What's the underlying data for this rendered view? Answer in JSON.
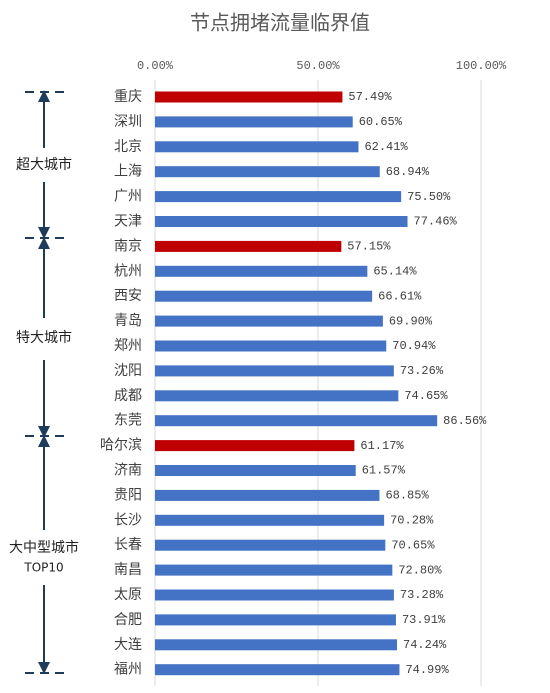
{
  "chart_data": {
    "type": "hbar",
    "title": "节点拥堵流量临界值",
    "categories": [
      "重庆",
      "深圳",
      "北京",
      "上海",
      "广州",
      "天津",
      "南京",
      "杭州",
      "西安",
      "青岛",
      "郑州",
      "沈阳",
      "成都",
      "东莞",
      "哈尔滨",
      "济南",
      "贵阳",
      "长沙",
      "长春",
      "南昌",
      "太原",
      "合肥",
      "大连",
      "福州"
    ],
    "values": [
      57.49,
      60.65,
      62.41,
      68.94,
      75.5,
      77.46,
      57.15,
      65.14,
      66.61,
      69.9,
      70.94,
      73.26,
      74.65,
      86.56,
      61.17,
      61.57,
      68.85,
      70.28,
      70.65,
      72.8,
      73.28,
      73.91,
      74.24,
      74.99
    ],
    "value_labels": [
      "57.49%",
      "60.65%",
      "62.41%",
      "68.94%",
      "75.50%",
      "77.46%",
      "57.15%",
      "65.14%",
      "66.61%",
      "69.90%",
      "70.94%",
      "73.26%",
      "74.65%",
      "86.56%",
      "61.17%",
      "61.57%",
      "68.85%",
      "70.28%",
      "70.65%",
      "72.80%",
      "73.28%",
      "73.91%",
      "74.24%",
      "74.99%"
    ],
    "colors": [
      "#c00000",
      "#4472c4",
      "#4472c4",
      "#4472c4",
      "#4472c4",
      "#4472c4",
      "#c00000",
      "#4472c4",
      "#4472c4",
      "#4472c4",
      "#4472c4",
      "#4472c4",
      "#4472c4",
      "#4472c4",
      "#c00000",
      "#4472c4",
      "#4472c4",
      "#4472c4",
      "#4472c4",
      "#4472c4",
      "#4472c4",
      "#4472c4",
      "#4472c4",
      "#4472c4"
    ],
    "xlim": [
      0,
      100
    ],
    "xticks": [
      {
        "value": 0,
        "label": "0.00%"
      },
      {
        "value": 50,
        "label": "50.00%"
      },
      {
        "value": 100,
        "label": "100.00%"
      }
    ],
    "grid": true,
    "annotations": [
      "超大城市",
      "特大城市",
      "大中型城市",
      "TOP10"
    ]
  }
}
